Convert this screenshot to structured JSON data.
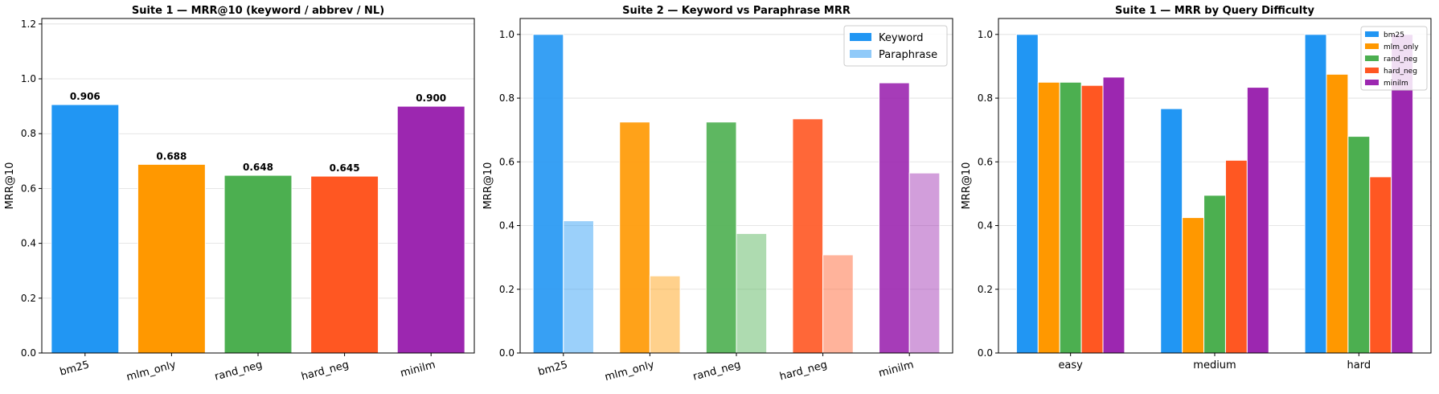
{
  "chart_data": [
    {
      "type": "bar",
      "title": "Suite 1 — MRR@10 (keyword / abbrev / NL)",
      "xlabel": "",
      "ylabel": "MRR@10",
      "ylim": [
        0,
        1.22
      ],
      "yticks": [
        0.0,
        0.2,
        0.4,
        0.6,
        0.8,
        1.0,
        1.2
      ],
      "ytick_labels": [
        "0.0",
        "0.2",
        "0.4",
        "0.6",
        "0.8",
        "1.0",
        "1.2"
      ],
      "grid": true,
      "categories": [
        "bm25",
        "mlm_only",
        "rand_neg",
        "hard_neg",
        "minilm"
      ],
      "values": [
        0.906,
        0.688,
        0.648,
        0.645,
        0.9
      ],
      "value_labels": [
        "0.906",
        "0.688",
        "0.648",
        "0.645",
        "0.900"
      ],
      "colors": [
        "#2196F3",
        "#FF9800",
        "#4CAF50",
        "#FF5722",
        "#9C27B0"
      ],
      "xtick_rotation": true
    },
    {
      "type": "bar",
      "title": "Suite 2 — Keyword vs Paraphrase MRR",
      "xlabel": "",
      "ylabel": "MRR@10",
      "ylim": [
        0,
        1.05
      ],
      "yticks": [
        0.0,
        0.2,
        0.4,
        0.6,
        0.8,
        1.0
      ],
      "ytick_labels": [
        "0.0",
        "0.2",
        "0.4",
        "0.6",
        "0.8",
        "1.0"
      ],
      "grid": true,
      "categories": [
        "bm25",
        "mlm_only",
        "rand_neg",
        "hard_neg",
        "minilm"
      ],
      "series": [
        {
          "name": "Keyword",
          "values": [
            1.0,
            0.725,
            0.725,
            0.735,
            0.848
          ],
          "opacity": 0.9
        },
        {
          "name": "Paraphrase",
          "values": [
            0.415,
            0.242,
            0.375,
            0.308,
            0.565
          ],
          "opacity": 0.45
        }
      ],
      "colors": [
        "#2196F3",
        "#FF9800",
        "#4CAF50",
        "#FF5722",
        "#9C27B0"
      ],
      "legend": {
        "placement": "top-right",
        "colors": [
          "#2196F3",
          "#90CAF9"
        ]
      },
      "xtick_rotation": true
    },
    {
      "type": "bar",
      "title": "Suite 1 — MRR by Query Difficulty",
      "xlabel": "",
      "ylabel": "MRR@10",
      "ylim": [
        0,
        1.05
      ],
      "yticks": [
        0.0,
        0.2,
        0.4,
        0.6,
        0.8,
        1.0
      ],
      "ytick_labels": [
        "0.0",
        "0.2",
        "0.4",
        "0.6",
        "0.8",
        "1.0"
      ],
      "grid": true,
      "categories": [
        "easy",
        "medium",
        "hard"
      ],
      "series": [
        {
          "name": "bm25",
          "color": "#2196F3",
          "values": [
            1.0,
            0.767,
            1.0
          ]
        },
        {
          "name": "mlm_only",
          "color": "#FF9800",
          "values": [
            0.85,
            0.425,
            0.875
          ]
        },
        {
          "name": "rand_neg",
          "color": "#4CAF50",
          "values": [
            0.85,
            0.495,
            0.68
          ]
        },
        {
          "name": "hard_neg",
          "color": "#FF5722",
          "values": [
            0.84,
            0.605,
            0.553
          ]
        },
        {
          "name": "minilm",
          "color": "#9C27B0",
          "values": [
            0.866,
            0.834,
            1.0
          ]
        }
      ],
      "legend": {
        "placement": "top-right"
      },
      "xtick_rotation": false
    }
  ]
}
